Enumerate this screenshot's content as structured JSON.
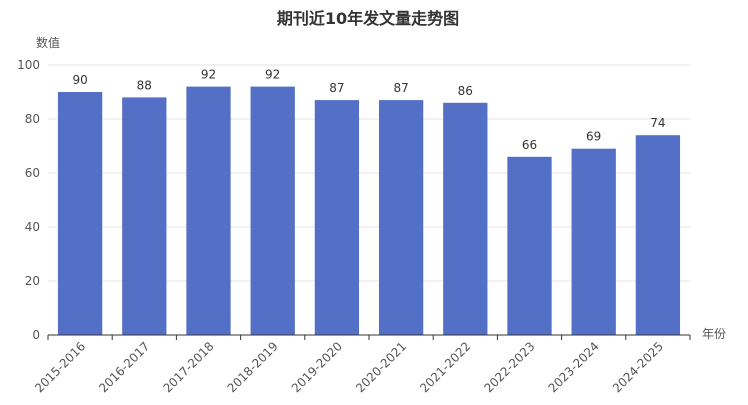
{
  "chart_data": {
    "type": "bar",
    "title": "期刊近10年发文量走势图",
    "xlabel": "年份",
    "ylabel": "数值",
    "categories": [
      "2015-2016",
      "2016-2017",
      "2017-2018",
      "2018-2019",
      "2019-2020",
      "2020-2021",
      "2021-2022",
      "2022-2023",
      "2023-2024",
      "2024-2025"
    ],
    "values": [
      90,
      88,
      92,
      92,
      87,
      87,
      86,
      66,
      69,
      74
    ],
    "ylim": [
      0,
      100
    ],
    "yticks": [
      0,
      20,
      40,
      60,
      80,
      100
    ],
    "grid": true,
    "colors": {
      "bar": "#5470c6",
      "grid": "#e6e6e6",
      "axis": "#333333"
    }
  }
}
